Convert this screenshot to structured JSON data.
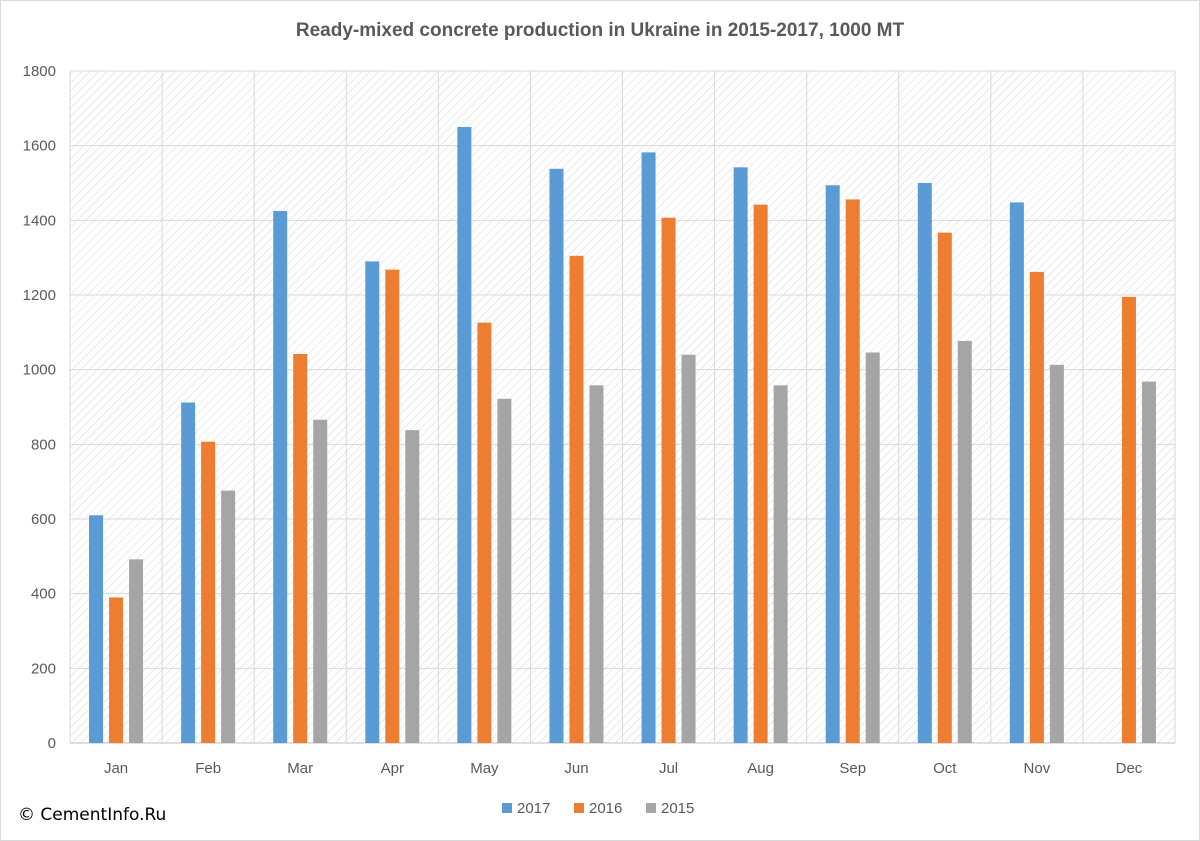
{
  "chart_data": {
    "type": "bar",
    "title": "Ready-mixed concrete production in Ukraine in 2015-2017, 1000 MT",
    "categories": [
      "Jan",
      "Feb",
      "Mar",
      "Apr",
      "May",
      "Jun",
      "Jul",
      "Aug",
      "Sep",
      "Oct",
      "Nov",
      "Dec"
    ],
    "series": [
      {
        "name": "2017",
        "color": "#5b9bd5",
        "values": [
          610,
          912,
          1425,
          1290,
          1650,
          1538,
          1582,
          1542,
          1494,
          1500,
          1448,
          null
        ]
      },
      {
        "name": "2016",
        "color": "#ed7d31",
        "values": [
          390,
          807,
          1042,
          1268,
          1126,
          1305,
          1407,
          1442,
          1456,
          1367,
          1262,
          1195
        ]
      },
      {
        "name": "2015",
        "color": "#a5a5a5",
        "values": [
          492,
          676,
          866,
          838,
          922,
          958,
          1040,
          958,
          1046,
          1077,
          1013,
          968
        ]
      }
    ],
    "ylim": [
      0,
      1800
    ],
    "yticks": [
      0,
      200,
      400,
      600,
      800,
      1000,
      1200,
      1400,
      1600,
      1800
    ],
    "grid": true,
    "legend": "bottom"
  },
  "footer": {
    "copyright": "© CementInfo.Ru"
  }
}
